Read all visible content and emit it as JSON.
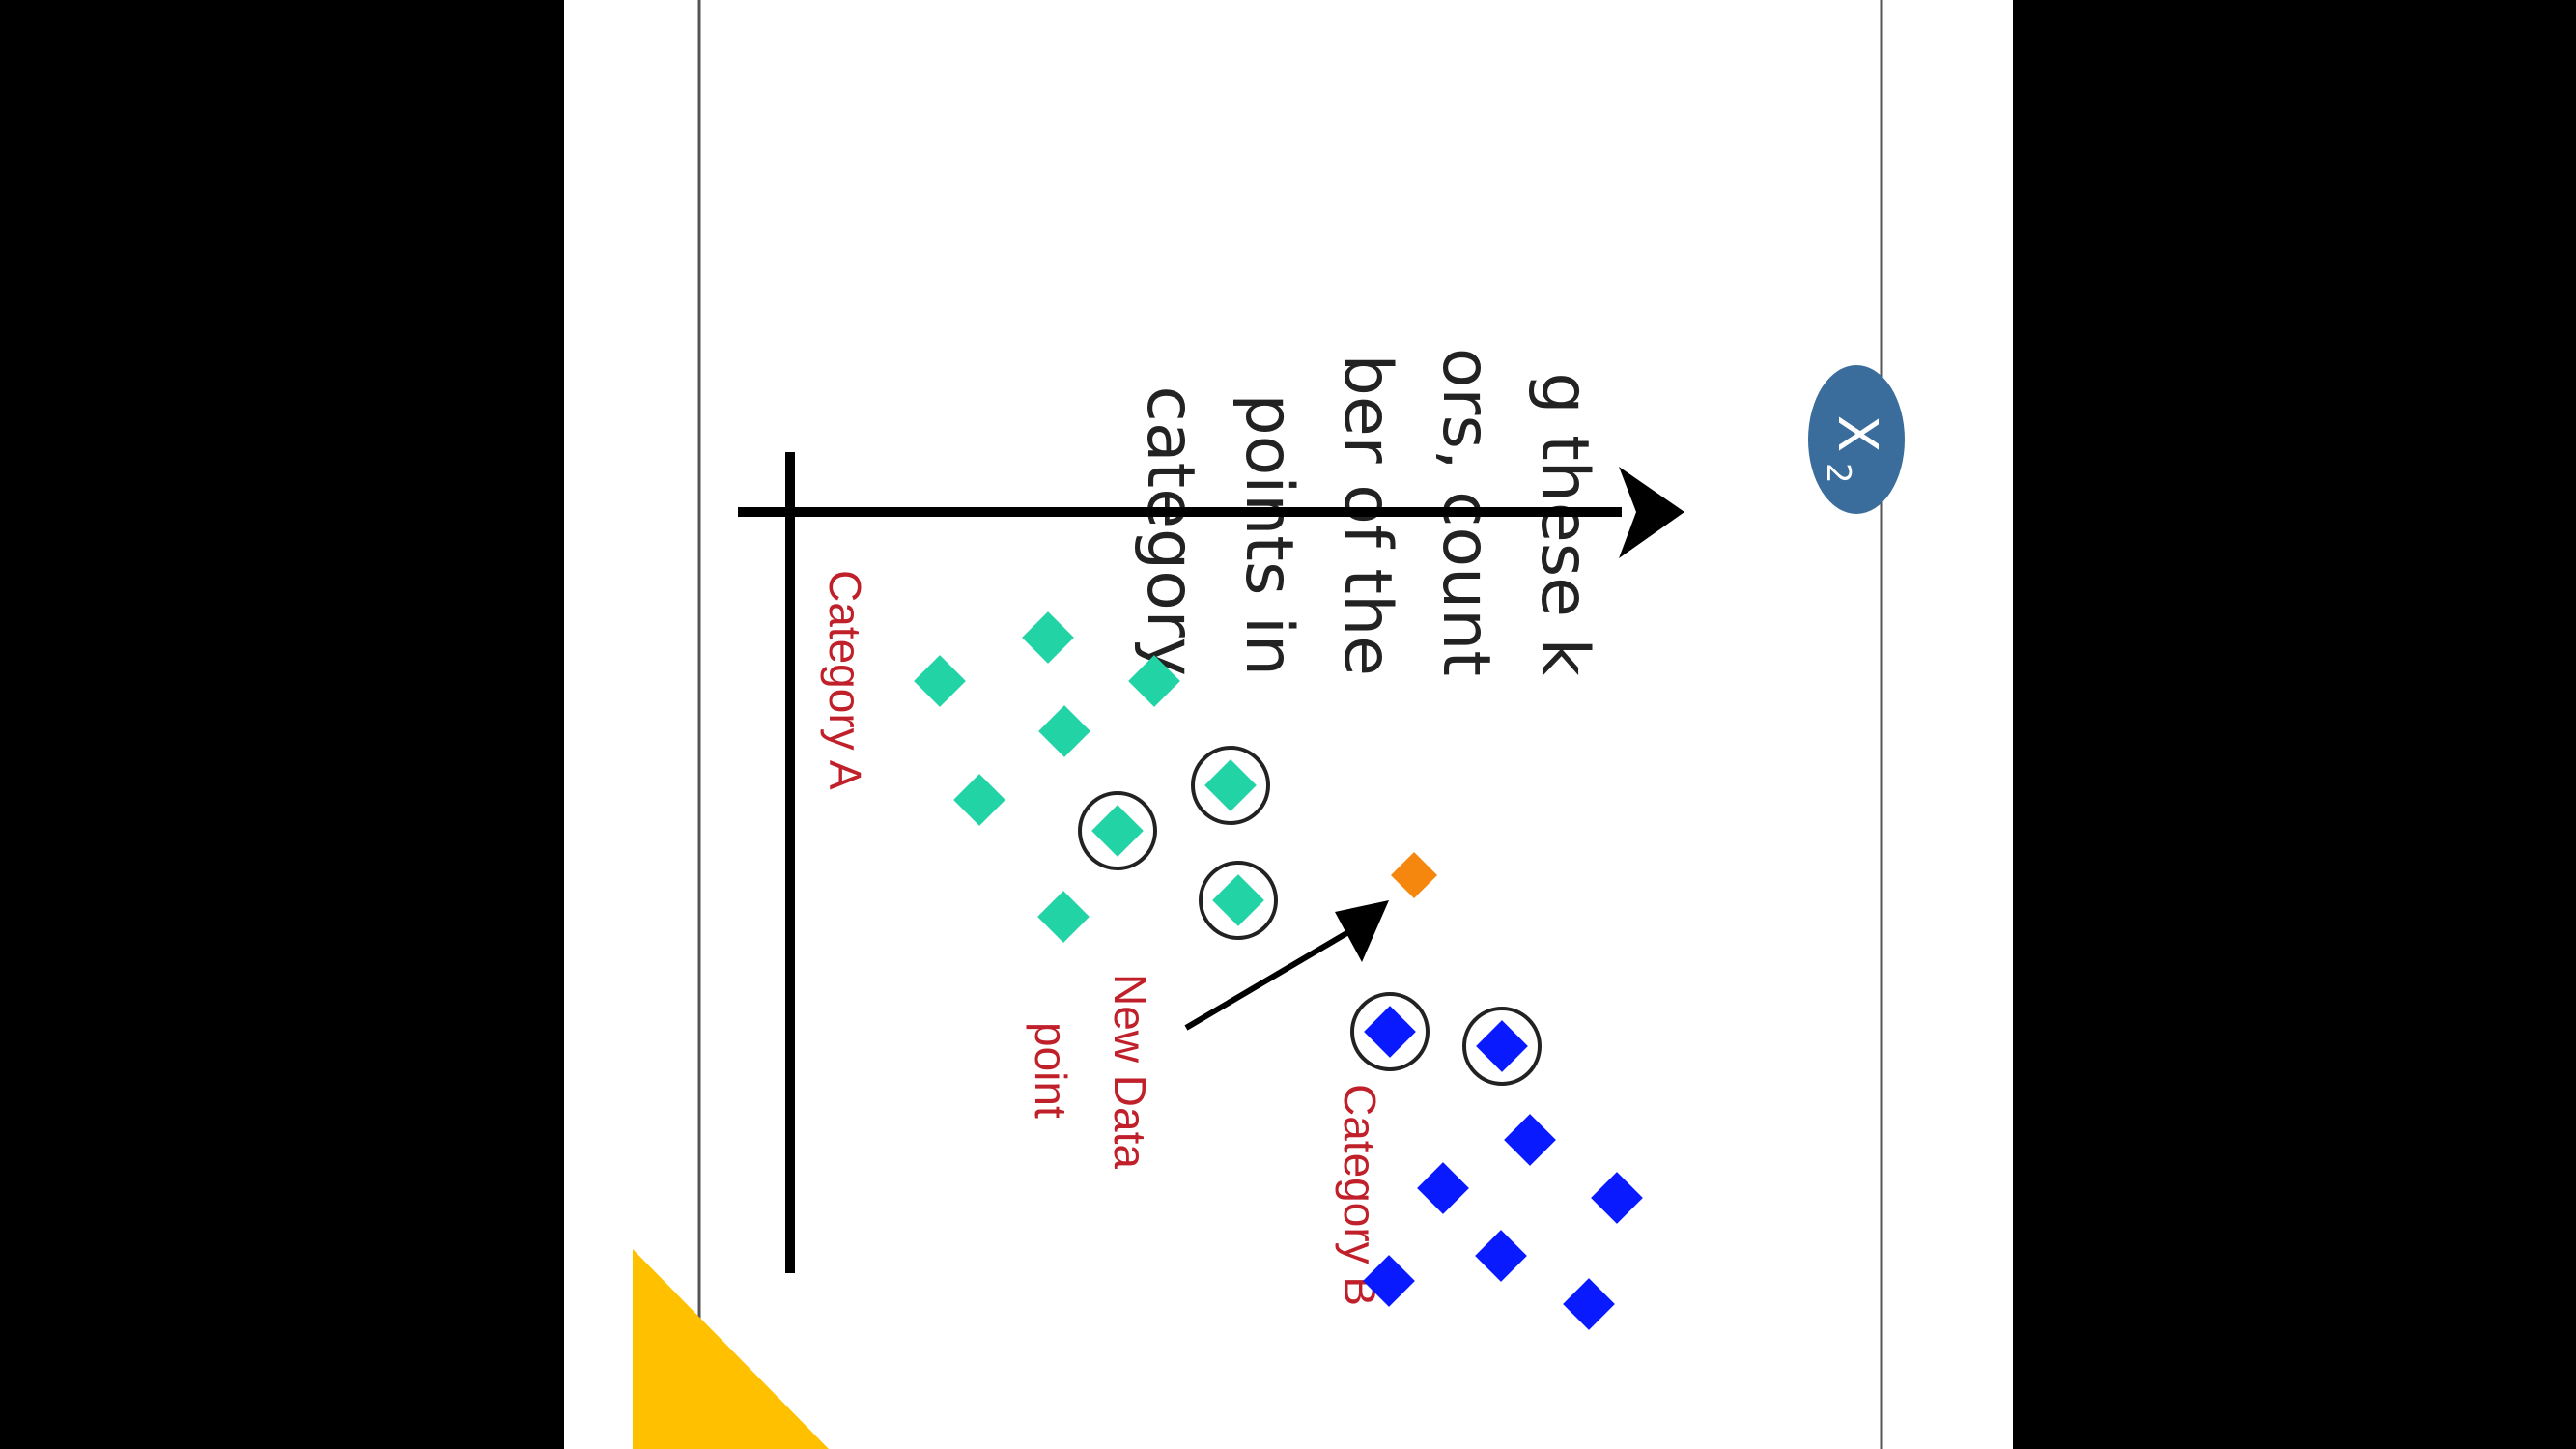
{
  "slide": {
    "body_text_lines": [
      "g these k",
      "ors, count",
      "ber of the",
      "points in",
      "category"
    ]
  },
  "diagram": {
    "axis_label": "X",
    "axis_label_subscript": "2",
    "category_a_label": "Category A",
    "category_b_label": "Category B",
    "new_point_label_line1": "New Data",
    "new_point_label_line2": "point"
  },
  "colors": {
    "category_a": "#22d3a6",
    "category_b": "#0a1aff",
    "new_point": "#f5870f",
    "label_red": "#c0202a",
    "badge": "#3a6c9c",
    "accent_triangle": "#ffc000",
    "text": "#222222"
  }
}
